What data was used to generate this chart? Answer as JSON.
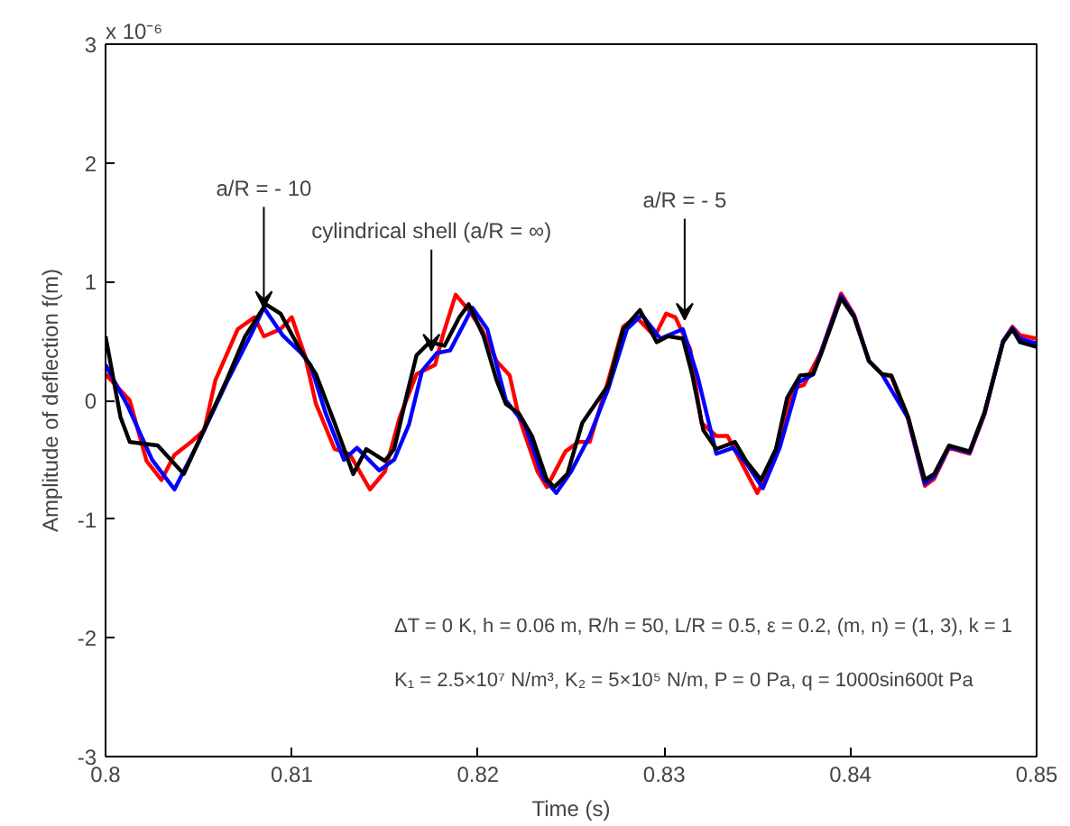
{
  "chart_data": {
    "type": "line",
    "xlabel": "Time (s)",
    "ylabel": "Amplitude of deflection f(m)",
    "xlim": [
      0.8,
      0.85
    ],
    "ylim": [
      -3,
      3
    ],
    "xticks": [
      0.8,
      0.81,
      0.82,
      0.83,
      0.84,
      0.85
    ],
    "yticks": [
      -3,
      -2,
      -1,
      0,
      1,
      2,
      3
    ],
    "grid": false,
    "marker": "none",
    "line_style": "solid",
    "annotations": [
      "x 10⁻⁶",
      {
        "text": "a/R = - 10",
        "x": 0.8085,
        "y": 0.78
      },
      {
        "text": "cylindrical shell (a/R = ∞)",
        "x": 0.8175,
        "y": 0.42
      },
      {
        "text": "a/R = - 5",
        "x": 0.8311,
        "y": 0.68
      },
      "ΔT = 0 K, h = 0.06 m, R/h = 50, L/R = 0.5, ε = 0.2, (m, n) = (1, 3), k = 1",
      "K₁ = 2.5×10⁷ N/m³, K₂ = 5×10⁵ N/m, P = 0 Pa, q = 1000sin600t Pa"
    ],
    "series": [
      {
        "color": "#ff0000",
        "x": [
          0.8,
          0.8013,
          0.8022,
          0.803,
          0.8037,
          0.8046,
          0.8053,
          0.8059,
          0.8071,
          0.808,
          0.8085,
          0.8094,
          0.81,
          0.8107,
          0.8113,
          0.8123,
          0.8131,
          0.8142,
          0.815,
          0.8158,
          0.8167,
          0.8177,
          0.8181,
          0.8188,
          0.8195,
          0.8202,
          0.821,
          0.8217,
          0.8222,
          0.8232,
          0.8237,
          0.8247,
          0.8254,
          0.826,
          0.827,
          0.8278,
          0.8285,
          0.8295,
          0.8301,
          0.8306,
          0.8314,
          0.832,
          0.8328,
          0.8334,
          0.8344,
          0.835,
          0.836,
          0.8369,
          0.8375,
          0.8384,
          0.8395,
          0.8402,
          0.841,
          0.8417,
          0.8422,
          0.8431,
          0.844,
          0.8445,
          0.8453,
          0.8464,
          0.8472,
          0.8482,
          0.8487,
          0.8491,
          0.85
        ],
        "values": [
          0.22,
          0.0,
          -0.51,
          -0.67,
          -0.46,
          -0.35,
          -0.25,
          0.17,
          0.6,
          0.7,
          0.54,
          0.6,
          0.7,
          0.38,
          -0.03,
          -0.41,
          -0.45,
          -0.75,
          -0.6,
          -0.14,
          0.22,
          0.3,
          0.54,
          0.89,
          0.76,
          0.6,
          0.33,
          0.21,
          -0.14,
          -0.6,
          -0.73,
          -0.43,
          -0.35,
          -0.35,
          0.17,
          0.62,
          0.7,
          0.54,
          0.73,
          0.7,
          0.43,
          -0.19,
          -0.3,
          -0.3,
          -0.6,
          -0.78,
          -0.46,
          0.1,
          0.13,
          0.4,
          0.9,
          0.72,
          0.33,
          0.22,
          0.2,
          -0.16,
          -0.72,
          -0.66,
          -0.4,
          -0.45,
          -0.12,
          0.5,
          0.62,
          0.55,
          0.52
        ]
      },
      {
        "color": "#0000ff",
        "x": [
          0.8,
          0.8012,
          0.8025,
          0.8037,
          0.805,
          0.8065,
          0.8078,
          0.8085,
          0.8095,
          0.8105,
          0.811,
          0.8118,
          0.8128,
          0.8135,
          0.8147,
          0.8155,
          0.8163,
          0.817,
          0.8178,
          0.8185,
          0.8197,
          0.8205,
          0.8215,
          0.8225,
          0.8235,
          0.8242,
          0.825,
          0.826,
          0.827,
          0.828,
          0.8288,
          0.8298,
          0.831,
          0.8318,
          0.8328,
          0.8337,
          0.8345,
          0.8353,
          0.8362,
          0.8372,
          0.838,
          0.8395,
          0.8402,
          0.841,
          0.8417,
          0.8431,
          0.844,
          0.8445,
          0.8453,
          0.8464,
          0.8472,
          0.8482,
          0.8487,
          0.8491,
          0.85
        ],
        "values": [
          0.3,
          -0.05,
          -0.5,
          -0.75,
          -0.35,
          0.15,
          0.55,
          0.78,
          0.55,
          0.4,
          0.3,
          -0.1,
          -0.5,
          -0.4,
          -0.59,
          -0.5,
          -0.2,
          0.25,
          0.4,
          0.42,
          0.78,
          0.6,
          0.0,
          -0.2,
          -0.65,
          -0.78,
          -0.6,
          -0.3,
          0.1,
          0.6,
          0.72,
          0.52,
          0.6,
          0.2,
          -0.45,
          -0.4,
          -0.55,
          -0.74,
          -0.4,
          0.15,
          0.22,
          0.88,
          0.71,
          0.33,
          0.22,
          -0.15,
          -0.7,
          -0.64,
          -0.39,
          -0.44,
          -0.11,
          0.5,
          0.61,
          0.52,
          0.48
        ]
      },
      {
        "color": "#000000",
        "x": [
          0.8,
          0.8008,
          0.8013,
          0.8028,
          0.8042,
          0.8056,
          0.8065,
          0.8075,
          0.8086,
          0.8094,
          0.8104,
          0.8113,
          0.8123,
          0.8133,
          0.814,
          0.815,
          0.8155,
          0.8162,
          0.8167,
          0.8174,
          0.8182,
          0.819,
          0.8195,
          0.8203,
          0.821,
          0.8215,
          0.8222,
          0.8229,
          0.8237,
          0.8241,
          0.8248,
          0.8256,
          0.827,
          0.8278,
          0.8287,
          0.8296,
          0.8302,
          0.831,
          0.8315,
          0.8321,
          0.8328,
          0.8338,
          0.8344,
          0.8352,
          0.836,
          0.8366,
          0.8373,
          0.838,
          0.8384,
          0.8395,
          0.8402,
          0.841,
          0.8417,
          0.8422,
          0.8431,
          0.844,
          0.8445,
          0.8453,
          0.8464,
          0.8472,
          0.8482,
          0.8487,
          0.8491,
          0.85
        ],
        "values": [
          0.54,
          -0.14,
          -0.35,
          -0.38,
          -0.62,
          -0.14,
          0.17,
          0.54,
          0.81,
          0.73,
          0.44,
          0.22,
          -0.19,
          -0.62,
          -0.41,
          -0.51,
          -0.41,
          0.06,
          0.38,
          0.49,
          0.46,
          0.7,
          0.81,
          0.54,
          0.17,
          -0.03,
          -0.11,
          -0.3,
          -0.67,
          -0.73,
          -0.62,
          -0.19,
          0.13,
          0.6,
          0.76,
          0.49,
          0.54,
          0.52,
          0.22,
          -0.25,
          -0.41,
          -0.35,
          -0.51,
          -0.67,
          -0.41,
          0.02,
          0.21,
          0.22,
          0.38,
          0.86,
          0.7,
          0.33,
          0.22,
          0.21,
          -0.14,
          -0.67,
          -0.62,
          -0.38,
          -0.43,
          -0.1,
          0.49,
          0.6,
          0.49,
          0.45
        ]
      }
    ]
  }
}
